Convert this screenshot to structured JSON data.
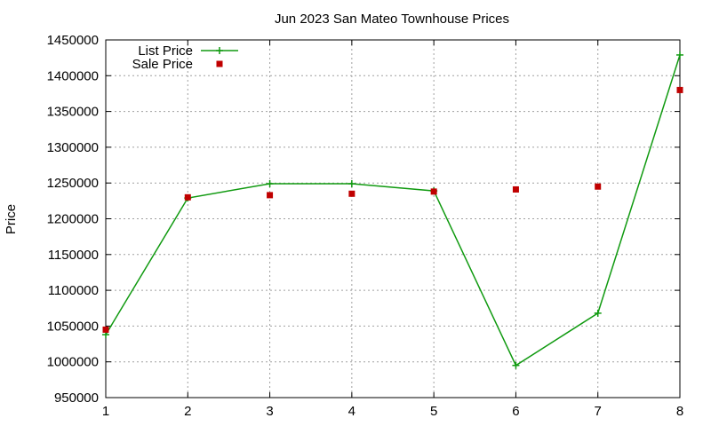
{
  "chart_data": {
    "type": "line",
    "title": "Jun 2023 San Mateo Townhouse Prices",
    "xlabel": "",
    "ylabel": "Price",
    "x": [
      1,
      2,
      3,
      4,
      5,
      6,
      7,
      8
    ],
    "xlim": [
      1,
      8
    ],
    "ylim": [
      950000,
      1450000
    ],
    "xticks": [
      1,
      2,
      3,
      4,
      5,
      6,
      7,
      8
    ],
    "yticks": [
      950000,
      1000000,
      1050000,
      1100000,
      1150000,
      1200000,
      1250000,
      1300000,
      1350000,
      1400000,
      1450000
    ],
    "grid": true,
    "legend_position": "top-left",
    "series": [
      {
        "name": "List Price",
        "style": "line-with-plus-markers",
        "color": "#109a10",
        "values": [
          1038000,
          1229000,
          1249000,
          1249000,
          1239000,
          995000,
          1068000,
          1429000
        ]
      },
      {
        "name": "Sale Price",
        "style": "square-markers",
        "color": "#c00000",
        "values": [
          1045000,
          1230000,
          1233000,
          1235000,
          1238000,
          1241000,
          1245000,
          1380000
        ]
      }
    ]
  }
}
